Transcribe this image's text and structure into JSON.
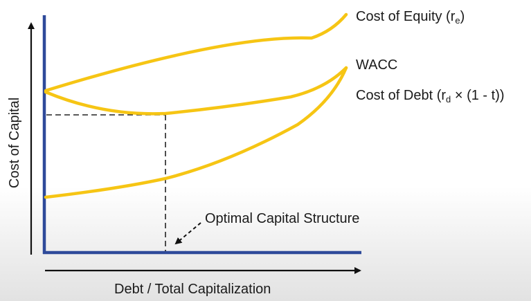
{
  "labels": {
    "equity_main": "Cost of Equity (r",
    "equity_sub": "e",
    "equity_close": ")",
    "wacc": "WACC",
    "debt_main": "Cost of Debt (r",
    "debt_sub": "d",
    "debt_rest": " × (1 - t))",
    "y_axis": "Cost of Capital",
    "x_axis": "Debt / Total Capitalization",
    "optimal": "Optimal Capital Structure"
  },
  "colors": {
    "curve": "#f6c514",
    "axis_primary": "#2e4a9a",
    "axis_secondary": "#111111",
    "guide": "#222222"
  }
}
